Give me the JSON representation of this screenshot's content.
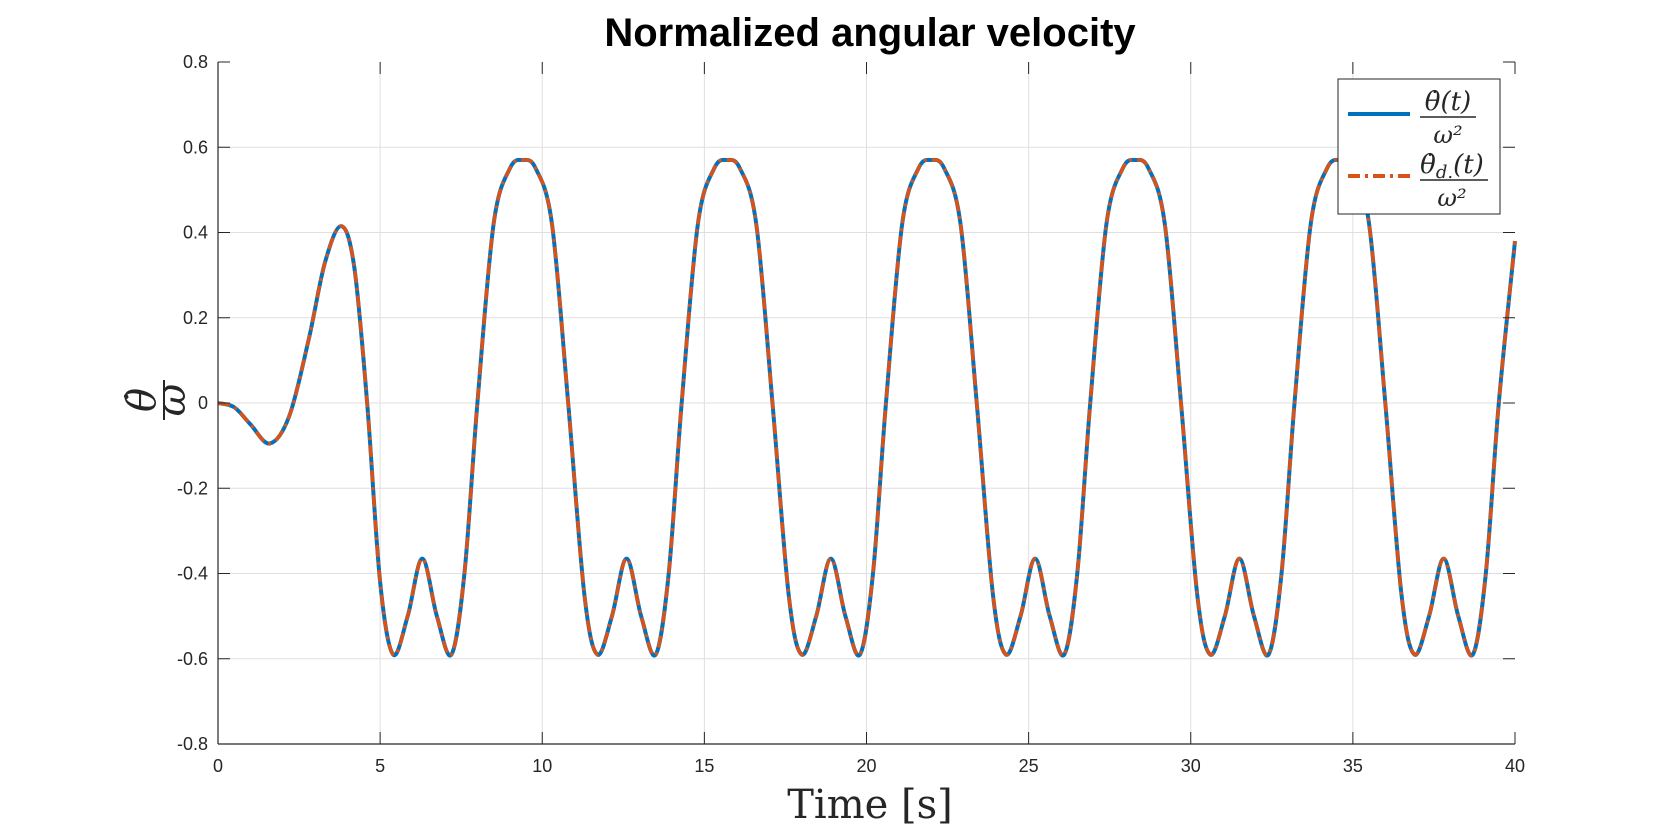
{
  "chart_data": {
    "type": "line",
    "title": "Normalized angular velocity",
    "xlabel": "Time [s]",
    "ylabel": {
      "numerator": "θ̇",
      "denominator": "ω"
    },
    "xlim": [
      0,
      40
    ],
    "ylim": [
      -0.8,
      0.8
    ],
    "xticks": [
      0,
      5,
      10,
      15,
      20,
      25,
      30,
      35,
      40
    ],
    "xtick_labels": [
      "0",
      "5",
      "10",
      "15",
      "20",
      "25",
      "30",
      "35",
      "40"
    ],
    "yticks": [
      -0.8,
      -0.6,
      -0.4,
      -0.2,
      0,
      0.2,
      0.4,
      0.6,
      0.8
    ],
    "ytick_labels": [
      "-0.8",
      "-0.6",
      "-0.4",
      "-0.2",
      "0",
      "0.2",
      "0.4",
      "0.6",
      "0.8"
    ],
    "grid": true,
    "legend_position": "top-right",
    "series": [
      {
        "name": "θ̇(t) / ω²",
        "legend": {
          "numerator": "θ̇(t)",
          "denominator": "ω²"
        },
        "color": "#0072BD",
        "style": "solid",
        "points": [
          [
            0.0,
            0.0
          ],
          [
            0.5,
            -0.01
          ],
          [
            1.0,
            -0.05
          ],
          [
            1.6,
            -0.095
          ],
          [
            2.2,
            -0.03
          ],
          [
            2.8,
            0.15
          ],
          [
            3.3,
            0.33
          ],
          [
            3.8,
            0.415
          ],
          [
            4.2,
            0.32
          ],
          [
            4.6,
            0.0
          ],
          [
            5.0,
            -0.42
          ],
          [
            5.4,
            -0.59
          ],
          [
            5.85,
            -0.5
          ],
          [
            6.3,
            -0.365
          ],
          [
            6.75,
            -0.5
          ],
          [
            7.2,
            -0.59
          ],
          [
            7.6,
            -0.4
          ],
          [
            8.0,
            0.0
          ],
          [
            8.5,
            0.42
          ],
          [
            9.0,
            0.55
          ],
          [
            9.4,
            0.57
          ],
          [
            9.8,
            0.55
          ],
          [
            10.3,
            0.42
          ],
          [
            10.8,
            0.0
          ],
          [
            11.3,
            -0.45
          ],
          [
            11.7,
            -0.59
          ],
          [
            12.15,
            -0.5
          ],
          [
            12.6,
            -0.365
          ],
          [
            13.05,
            -0.5
          ],
          [
            13.5,
            -0.59
          ],
          [
            13.9,
            -0.4
          ],
          [
            14.3,
            0.0
          ],
          [
            14.8,
            0.42
          ],
          [
            15.3,
            0.55
          ],
          [
            15.7,
            0.57
          ],
          [
            16.1,
            0.55
          ],
          [
            16.6,
            0.42
          ],
          [
            17.1,
            0.0
          ],
          [
            17.6,
            -0.45
          ],
          [
            18.0,
            -0.59
          ],
          [
            18.45,
            -0.5
          ],
          [
            18.9,
            -0.365
          ],
          [
            19.35,
            -0.5
          ],
          [
            19.8,
            -0.59
          ],
          [
            20.2,
            -0.4
          ],
          [
            20.6,
            0.0
          ],
          [
            21.1,
            0.42
          ],
          [
            21.6,
            0.55
          ],
          [
            22.0,
            0.57
          ],
          [
            22.4,
            0.55
          ],
          [
            22.9,
            0.42
          ],
          [
            23.4,
            0.0
          ],
          [
            23.9,
            -0.45
          ],
          [
            24.3,
            -0.59
          ],
          [
            24.75,
            -0.5
          ],
          [
            25.2,
            -0.365
          ],
          [
            25.65,
            -0.5
          ],
          [
            26.1,
            -0.59
          ],
          [
            26.5,
            -0.4
          ],
          [
            26.9,
            0.0
          ],
          [
            27.4,
            0.42
          ],
          [
            27.9,
            0.55
          ],
          [
            28.3,
            0.57
          ],
          [
            28.7,
            0.55
          ],
          [
            29.2,
            0.42
          ],
          [
            29.7,
            0.0
          ],
          [
            30.2,
            -0.45
          ],
          [
            30.6,
            -0.59
          ],
          [
            31.05,
            -0.5
          ],
          [
            31.5,
            -0.365
          ],
          [
            31.95,
            -0.5
          ],
          [
            32.4,
            -0.59
          ],
          [
            32.8,
            -0.4
          ],
          [
            33.2,
            0.0
          ],
          [
            33.7,
            0.42
          ],
          [
            34.2,
            0.55
          ],
          [
            34.6,
            0.57
          ],
          [
            35.0,
            0.55
          ],
          [
            35.5,
            0.42
          ],
          [
            36.0,
            0.0
          ],
          [
            36.5,
            -0.45
          ],
          [
            36.9,
            -0.59
          ],
          [
            37.35,
            -0.5
          ],
          [
            37.8,
            -0.365
          ],
          [
            38.25,
            -0.5
          ],
          [
            38.7,
            -0.59
          ],
          [
            39.1,
            -0.4
          ],
          [
            39.5,
            0.0
          ],
          [
            40.0,
            0.38
          ]
        ]
      },
      {
        "name": "θ̇d.(t) / ω²",
        "legend": {
          "numerator": "θ̇",
          "subscript": "d.",
          "suffix": "(t)",
          "denominator": "ω²"
        },
        "color": "#D95319",
        "style": "dashdot",
        "same_as_series": 0
      }
    ]
  }
}
